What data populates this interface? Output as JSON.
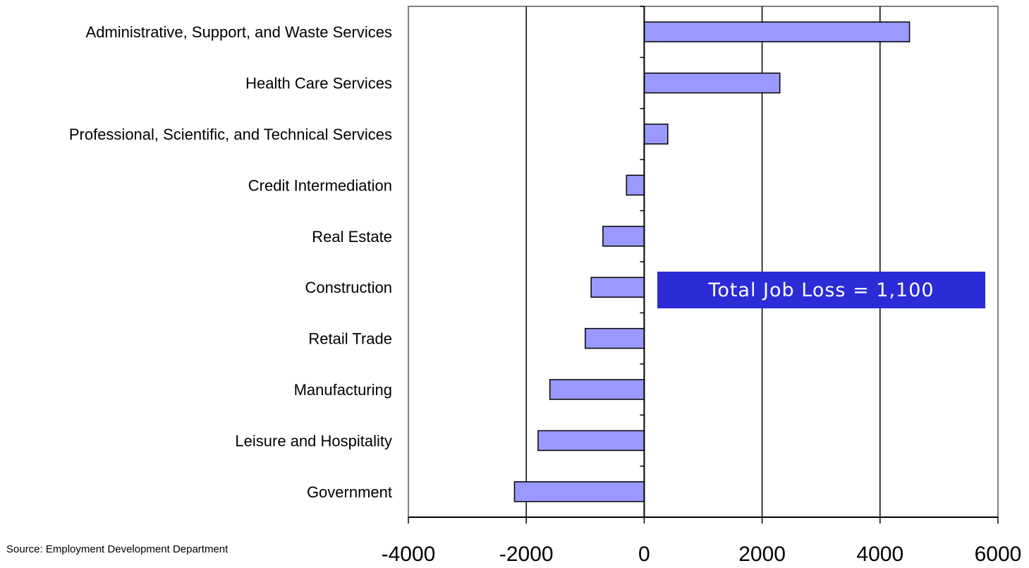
{
  "chart_data": {
    "type": "bar",
    "orientation": "horizontal",
    "categories": [
      "Administrative, Support, and Waste Services",
      "Health Care Services",
      "Professional, Scientific, and Technical Services",
      "Credit Intermediation",
      "Real Estate",
      "Construction",
      "Retail Trade",
      "Manufacturing",
      "Leisure and Hospitality",
      "Government"
    ],
    "values": [
      4500,
      2300,
      400,
      -300,
      -700,
      -900,
      -1000,
      -1600,
      -1800,
      -2200
    ],
    "xlim": [
      -4000,
      6000
    ],
    "xticks": [
      "-4000",
      "-2000",
      "0",
      "2000",
      "4000",
      "6000"
    ],
    "xtick_values": [
      -4000,
      -2000,
      0,
      2000,
      4000,
      6000
    ],
    "bar_color": "#9999ff",
    "bar_edge_color": "#000000",
    "grid": "vertical",
    "annotation": "Total Job Loss = 1,100",
    "annotation_color": "#2b2bd8",
    "title": "",
    "xlabel": "",
    "ylabel": ""
  },
  "source": "Source:  Employment Development Department"
}
